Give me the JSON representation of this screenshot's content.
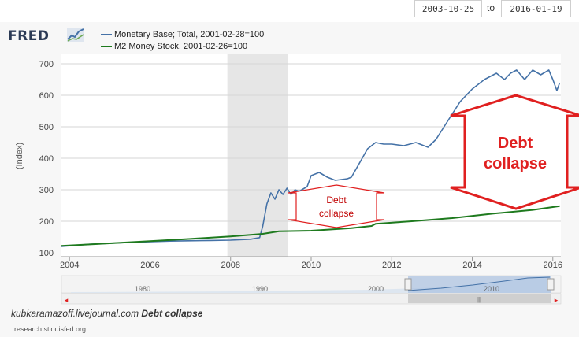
{
  "date_range": {
    "start": "2003-10-25",
    "separator": "to",
    "end": "2016-01-19"
  },
  "logo": {
    "text": "FRED"
  },
  "legend": [
    {
      "label": "Monetary Base; Total, 2001-02-28=100",
      "color": "#4572a7"
    },
    {
      "label": "M2 Money Stock, 2001-02-26=100",
      "color": "#1e7a1e"
    }
  ],
  "annotations": {
    "small_label_line1": "Debt",
    "small_label_line2": "collapse",
    "big_label_line1": "Debt",
    "big_label_line2": "collapse",
    "arrow_color": "#e02020"
  },
  "watermark": {
    "site": "kubkaramazoff.livejournal.com",
    "title": "Debt collapse"
  },
  "source": "research.stlouisfed.org",
  "navigator": {
    "ticks": [
      "1980",
      "1990",
      "2000",
      "2010"
    ],
    "grip": "|||"
  },
  "chart_data": {
    "type": "line",
    "ylabel": "(Index)",
    "xlabel": "",
    "ylim": [
      100,
      700
    ],
    "xlim": [
      2003.8,
      2016.2
    ],
    "x_ticks": [
      "2004",
      "2006",
      "2008",
      "2010",
      "2012",
      "2014",
      "2016"
    ],
    "y_ticks": [
      "100",
      "200",
      "300",
      "400",
      "500",
      "600",
      "700"
    ],
    "recession": [
      2007.92,
      2009.42
    ],
    "series": [
      {
        "name": "Monetary Base; Total, 2001-02-28=100",
        "color": "#4572a7",
        "x": [
          2003.8,
          2004.5,
          2005.5,
          2006.5,
          2007.5,
          2008.0,
          2008.5,
          2008.72,
          2008.8,
          2008.9,
          2009.0,
          2009.1,
          2009.2,
          2009.3,
          2009.4,
          2009.5,
          2009.6,
          2009.7,
          2009.9,
          2010.0,
          2010.2,
          2010.4,
          2010.6,
          2010.9,
          2011.0,
          2011.2,
          2011.4,
          2011.6,
          2011.8,
          2012.0,
          2012.3,
          2012.6,
          2012.9,
          2013.1,
          2013.4,
          2013.7,
          2014.0,
          2014.3,
          2014.6,
          2014.8,
          2014.95,
          2015.1,
          2015.3,
          2015.5,
          2015.7,
          2015.9,
          2016.0,
          2016.1,
          2016.17
        ],
        "y": [
          120,
          127,
          133,
          137,
          139,
          140,
          143,
          148,
          185,
          255,
          290,
          270,
          300,
          285,
          305,
          285,
          300,
          295,
          310,
          345,
          355,
          340,
          330,
          335,
          340,
          385,
          430,
          450,
          445,
          445,
          440,
          450,
          435,
          460,
          520,
          580,
          620,
          650,
          670,
          650,
          670,
          680,
          650,
          680,
          665,
          680,
          650,
          615,
          640
        ]
      },
      {
        "name": "M2 Money Stock, 2001-02-26=100",
        "color": "#1e7a1e",
        "x": [
          2003.8,
          2005.0,
          2006.0,
          2007.0,
          2008.0,
          2008.8,
          2009.2,
          2010.0,
          2011.0,
          2011.5,
          2011.6,
          2012.5,
          2013.5,
          2014.5,
          2015.5,
          2016.17
        ],
        "y": [
          122,
          130,
          137,
          144,
          152,
          160,
          168,
          170,
          178,
          185,
          192,
          200,
          210,
          224,
          236,
          248
        ]
      }
    ]
  },
  "colors": {
    "background": "#ffffff",
    "plot_background": "#ffffff",
    "gridline": "#d6d6d6",
    "recession_band": "#e6e6e6"
  }
}
